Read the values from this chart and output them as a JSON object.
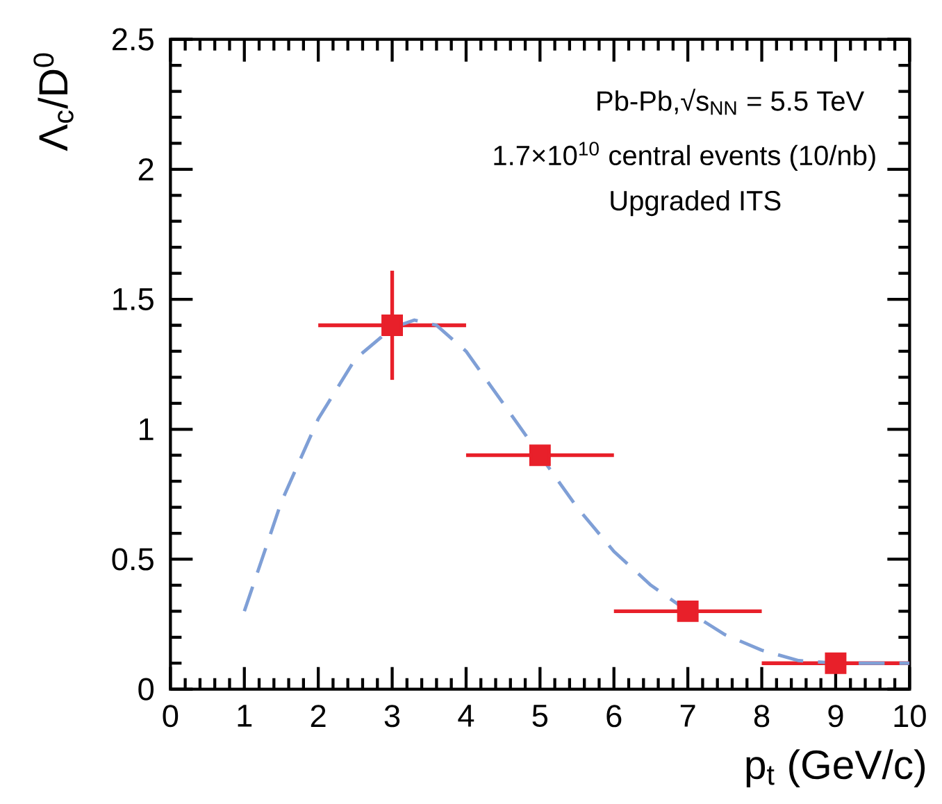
{
  "chart_data": {
    "type": "scatter",
    "xlabel": "p$_{t}$ (GeV/c)",
    "ylabel": "Λ$_{c}$/D$^{0}$",
    "annotations": [
      "Pb-Pb,√s$_{NN}$ = 5.5 TeV",
      "1.7×10$^{10}$ central events (10/nb)",
      "Upgraded ITS"
    ],
    "xlim": [
      0,
      10
    ],
    "ylim": [
      0,
      2.5
    ],
    "xticks": [
      0,
      1,
      2,
      3,
      4,
      5,
      6,
      7,
      8,
      9,
      10
    ],
    "yticks": [
      0,
      0.5,
      1,
      1.5,
      2,
      2.5
    ],
    "grid": false,
    "series": [
      {
        "color": "#e8202a",
        "marker": "square",
        "x": [
          3,
          5,
          7,
          9
        ],
        "values": [
          1.4,
          0.9,
          0.3,
          0.1
        ],
        "xerrors": [
          1,
          1,
          1,
          1
        ],
        "errors": [
          0.21,
          null,
          null,
          null
        ]
      },
      {
        "type": "line",
        "color": "#7f9fd6",
        "marker": "none",
        "line_style": "dashed",
        "x": [
          1,
          1.5,
          2,
          2.5,
          3,
          3.3,
          3.6,
          4,
          4.5,
          5,
          5.5,
          6,
          6.5,
          7,
          7.5,
          8,
          8.5,
          9,
          10
        ],
        "values": [
          0.3,
          0.72,
          1.04,
          1.27,
          1.39,
          1.42,
          1.4,
          1.3,
          1.1,
          0.9,
          0.7,
          0.53,
          0.4,
          0.3,
          0.21,
          0.15,
          0.11,
          0.1,
          0.1
        ]
      }
    ]
  }
}
